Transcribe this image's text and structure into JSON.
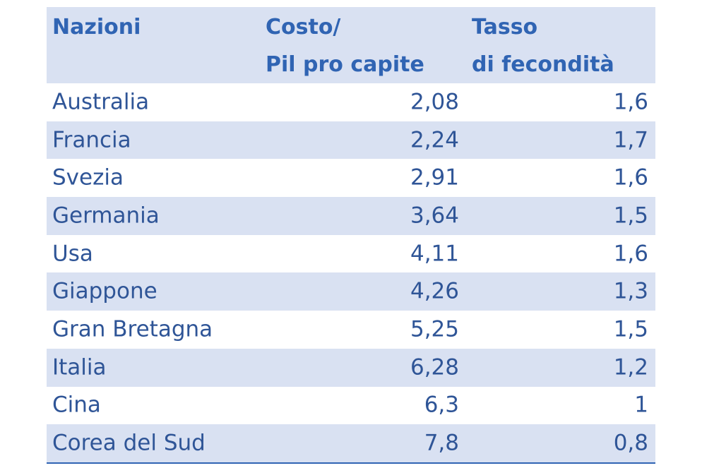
{
  "header": {
    "nations": "Nazioni",
    "cost_line1": "Costo/",
    "cost_line2": "Pil pro capite",
    "rate_line1": "Tasso",
    "rate_line2": "di fecondità"
  },
  "rows": [
    {
      "nation": "Australia",
      "cost": "2,08",
      "rate": "1,6"
    },
    {
      "nation": "Francia",
      "cost": "2,24",
      "rate": "1,7"
    },
    {
      "nation": "Svezia",
      "cost": "2,91",
      "rate": "1,6"
    },
    {
      "nation": "Germania",
      "cost": "3,64",
      "rate": "1,5"
    },
    {
      "nation": "Usa",
      "cost": "4,11",
      "rate": "1,6"
    },
    {
      "nation": "Giappone",
      "cost": "4,26",
      "rate": "1,3"
    },
    {
      "nation": "Gran Bretagna",
      "cost": "5,25",
      "rate": "1,5"
    },
    {
      "nation": "Italia",
      "cost": "6,28",
      "rate": "1,2"
    },
    {
      "nation": "Cina",
      "cost": "6,3",
      "rate": "1"
    },
    {
      "nation": "Corea del Sud",
      "cost": "7,8",
      "rate": "0,8"
    }
  ],
  "colors": {
    "text": "#2f5597",
    "header_text": "#3064b3",
    "band": "#d9e1f2"
  }
}
